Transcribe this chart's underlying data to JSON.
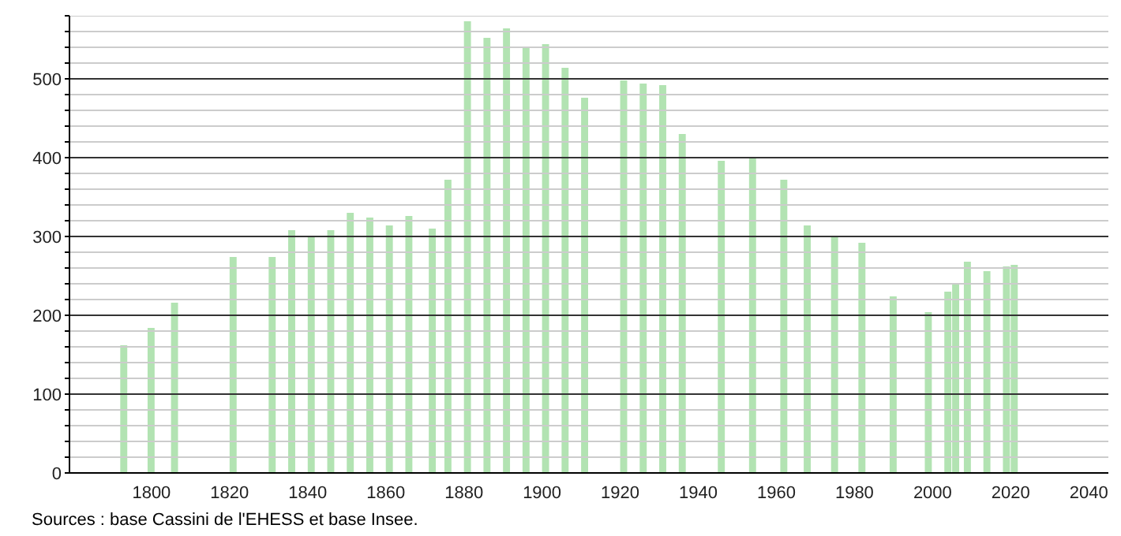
{
  "chart_data": {
    "type": "bar",
    "color": "#b2e3b2",
    "x": [
      1793,
      1800,
      1806,
      1821,
      1831,
      1836,
      1841,
      1846,
      1851,
      1856,
      1861,
      1866,
      1872,
      1876,
      1881,
      1886,
      1891,
      1896,
      1901,
      1906,
      1911,
      1921,
      1926,
      1931,
      1936,
      1946,
      1954,
      1962,
      1968,
      1975,
      1982,
      1990,
      1999,
      2004,
      2006,
      2009,
      2014,
      2019,
      2021
    ],
    "values": [
      162,
      184,
      216,
      274,
      274,
      308,
      300,
      308,
      330,
      324,
      314,
      326,
      310,
      372,
      573,
      552,
      564,
      540,
      544,
      514,
      476,
      498,
      494,
      492,
      430,
      396,
      400,
      372,
      314,
      300,
      292,
      224,
      204,
      230,
      240,
      268,
      256,
      262,
      264
    ],
    "xlim": [
      1779,
      2045
    ],
    "xticks": [
      1800,
      1820,
      1840,
      1860,
      1880,
      1900,
      1920,
      1940,
      1960,
      1980,
      2000,
      2020,
      2040
    ],
    "ylim": [
      0,
      580
    ],
    "yticks": [
      0,
      {
        "value": 20,
        "label": null
      },
      {
        "value": 40,
        "label": null
      },
      {
        "value": 60,
        "label": null
      },
      {
        "value": 80,
        "label": null
      },
      100,
      {
        "value": 120,
        "label": null
      },
      {
        "value": 140,
        "label": null
      },
      {
        "value": 160,
        "label": null
      },
      {
        "value": 180,
        "label": null
      },
      200,
      {
        "value": 220,
        "label": null
      },
      {
        "value": 240,
        "label": null
      },
      {
        "value": 260,
        "label": null
      },
      {
        "value": 280,
        "label": null
      },
      300,
      {
        "value": 320,
        "label": null
      },
      {
        "value": 340,
        "label": null
      },
      {
        "value": 360,
        "label": null
      },
      {
        "value": 380,
        "label": null
      },
      400,
      {
        "value": 420,
        "label": null
      },
      {
        "value": 440,
        "label": null
      },
      {
        "value": 460,
        "label": null
      },
      {
        "value": 480,
        "label": null
      },
      500,
      {
        "value": 520,
        "label": null
      },
      {
        "value": 540,
        "label": null
      },
      {
        "value": 560,
        "label": null
      },
      {
        "value": 580,
        "label": null
      }
    ],
    "grid": "y",
    "annotations": [
      "Sources : base Cassini de l'EHESS et base Insee."
    ]
  }
}
